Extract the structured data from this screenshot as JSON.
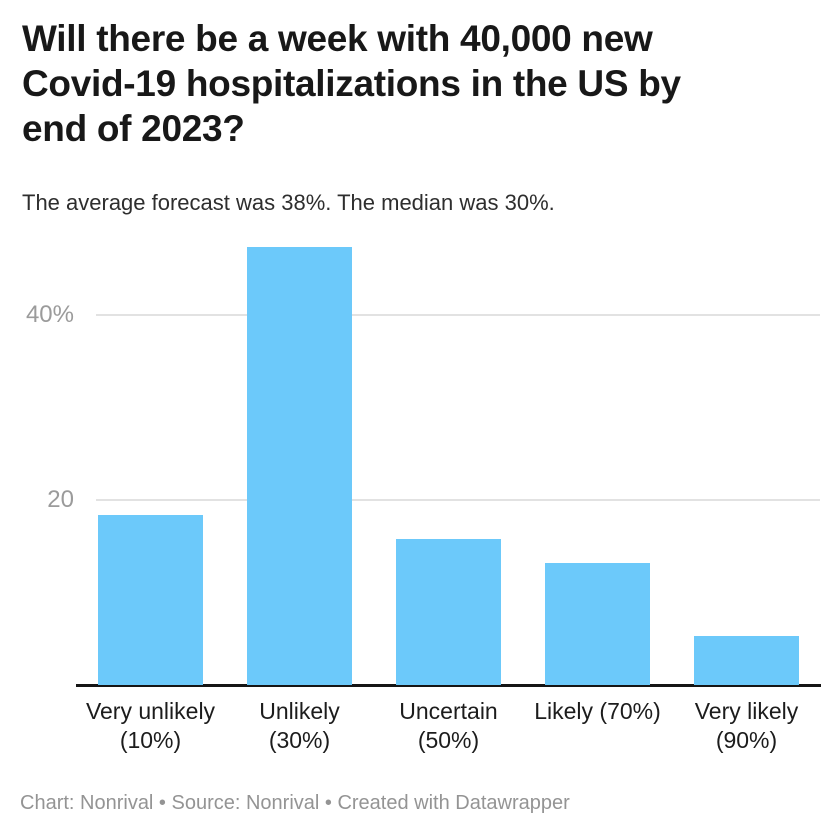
{
  "header": {
    "title": "Will there be a week with 40,000 new Covid-19 hospitalizations in the US by end of 2023?",
    "title_lines": [
      "Will there be a week with 40,000 new",
      "Covid-19 hospitalizations in the US by",
      "end of 2023?"
    ],
    "subtitle": "The average forecast was 38%. The median was 30%."
  },
  "chart_data": {
    "type": "bar",
    "title": "Will there be a week with 40,000 new Covid-19 hospitalizations in the US by end of 2023?",
    "subtitle": "The average forecast was 38%. The median was 30%.",
    "categories": [
      "Very unlikely (10%)",
      "Unlikely (30%)",
      "Uncertain (50%)",
      "Likely (70%)",
      "Very likely (90%)"
    ],
    "category_label_lines": [
      [
        "Very unlikely",
        "(10%)"
      ],
      [
        "Unlikely",
        "(30%)"
      ],
      [
        "Uncertain",
        "(50%)"
      ],
      [
        "Likely (70%)"
      ],
      [
        "Very likely",
        "(90%)"
      ]
    ],
    "values": [
      18.4,
      47.4,
      15.8,
      13.2,
      5.3
    ],
    "xlabel": "",
    "ylabel": "",
    "y_ticks": [
      {
        "value": 20,
        "label": "20"
      },
      {
        "value": 40,
        "label": "40%"
      }
    ],
    "ylim": [
      0,
      49.5
    ],
    "grid": "horizontal",
    "legend": "none",
    "bar_color": "#6CC9FA"
  },
  "footer": {
    "text": "Chart: Nonrival • Source: Nonrival • Created with Datawrapper"
  },
  "colors": {
    "background": "#ffffff",
    "bar": "#6CC9FA",
    "axis_line": "#151515",
    "gridline": "#e2e2e2",
    "y_tick_label": "#9b9b9b",
    "title": "#181818",
    "subtitle": "#2e2e2e",
    "category_label": "#1c1c1c",
    "footer": "#949494"
  }
}
